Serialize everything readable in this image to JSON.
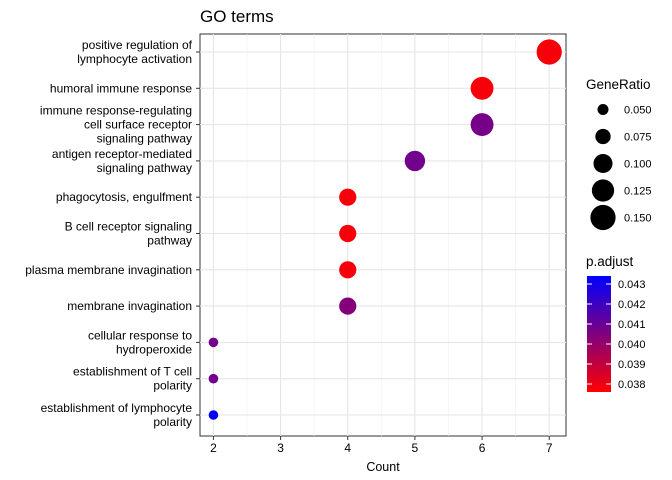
{
  "chart_data": {
    "type": "scatter",
    "title": "GO terms",
    "xlabel": "Count",
    "ylabel": "",
    "xlim": [
      1.8,
      7.25
    ],
    "xticks": [
      "2",
      "3",
      "4",
      "5",
      "6",
      "7"
    ],
    "grid": true,
    "legend_position": "right",
    "terms": [
      {
        "label": [
          "positive regulation of",
          "lymphocyte activation"
        ],
        "count": 7,
        "gene_ratio": 0.15,
        "p_adjust": 0.0378
      },
      {
        "label": [
          "humoral immune response"
        ],
        "count": 6,
        "gene_ratio": 0.13,
        "p_adjust": 0.0378
      },
      {
        "label": [
          "immune response-regulating",
          "cell surface receptor",
          "signaling pathway"
        ],
        "count": 6,
        "gene_ratio": 0.13,
        "p_adjust": 0.0407
      },
      {
        "label": [
          "antigen receptor-mediated",
          "signaling pathway"
        ],
        "count": 5,
        "gene_ratio": 0.11,
        "p_adjust": 0.0408
      },
      {
        "label": [
          "phagocytosis, engulfment"
        ],
        "count": 4,
        "gene_ratio": 0.087,
        "p_adjust": 0.0378
      },
      {
        "label": [
          "B cell receptor signaling",
          "pathway"
        ],
        "count": 4,
        "gene_ratio": 0.087,
        "p_adjust": 0.0378
      },
      {
        "label": [
          "plasma membrane invagination"
        ],
        "count": 4,
        "gene_ratio": 0.087,
        "p_adjust": 0.0378
      },
      {
        "label": [
          "membrane invagination"
        ],
        "count": 4,
        "gene_ratio": 0.087,
        "p_adjust": 0.0404
      },
      {
        "label": [
          "cellular response to",
          "hydroperoxide"
        ],
        "count": 2,
        "gene_ratio": 0.043,
        "p_adjust": 0.0408
      },
      {
        "label": [
          "establishment of T cell",
          "polarity"
        ],
        "count": 2,
        "gene_ratio": 0.043,
        "p_adjust": 0.0408
      },
      {
        "label": [
          "establishment of lymphocyte",
          "polarity"
        ],
        "count": 2,
        "gene_ratio": 0.043,
        "p_adjust": 0.0433
      }
    ],
    "size_legend": {
      "title": "GeneRatio",
      "values": [
        0.05,
        0.075,
        0.1,
        0.125,
        0.15
      ],
      "labels": [
        "0.050",
        "0.075",
        "0.100",
        "0.125",
        "0.150"
      ]
    },
    "color_legend": {
      "title": "p.adjust",
      "low": 0.0376,
      "high": 0.0434,
      "low_color": "#ff0000",
      "high_color": "#0000ff",
      "breaks": [
        0.043,
        0.042,
        0.041,
        0.04,
        0.039,
        0.038
      ],
      "labels": [
        "0.043",
        "0.042",
        "0.041",
        "0.040",
        "0.039",
        "0.038"
      ]
    }
  }
}
